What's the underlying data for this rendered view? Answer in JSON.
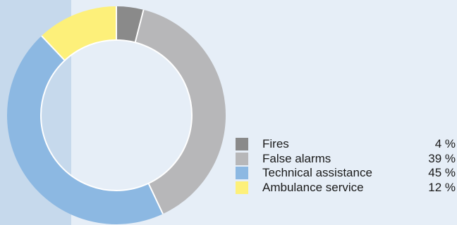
{
  "chart_data": {
    "type": "pie",
    "variant": "donut",
    "title": "",
    "slices": [
      {
        "label": "Fires",
        "value": 4,
        "display": "4 %",
        "color": "#8a8a8a"
      },
      {
        "label": "False alarms",
        "value": 39,
        "display": "39 %",
        "color": "#b7b7b9"
      },
      {
        "label": "Technical assistance",
        "value": 45,
        "display": "45 %",
        "color": "#8cb8e2"
      },
      {
        "label": "Ambulance service",
        "value": 12,
        "display": "12 %",
        "color": "#fdf07a"
      }
    ],
    "start_angle_deg": 0,
    "direction": "clockwise",
    "legend_position": "bottom-right"
  }
}
